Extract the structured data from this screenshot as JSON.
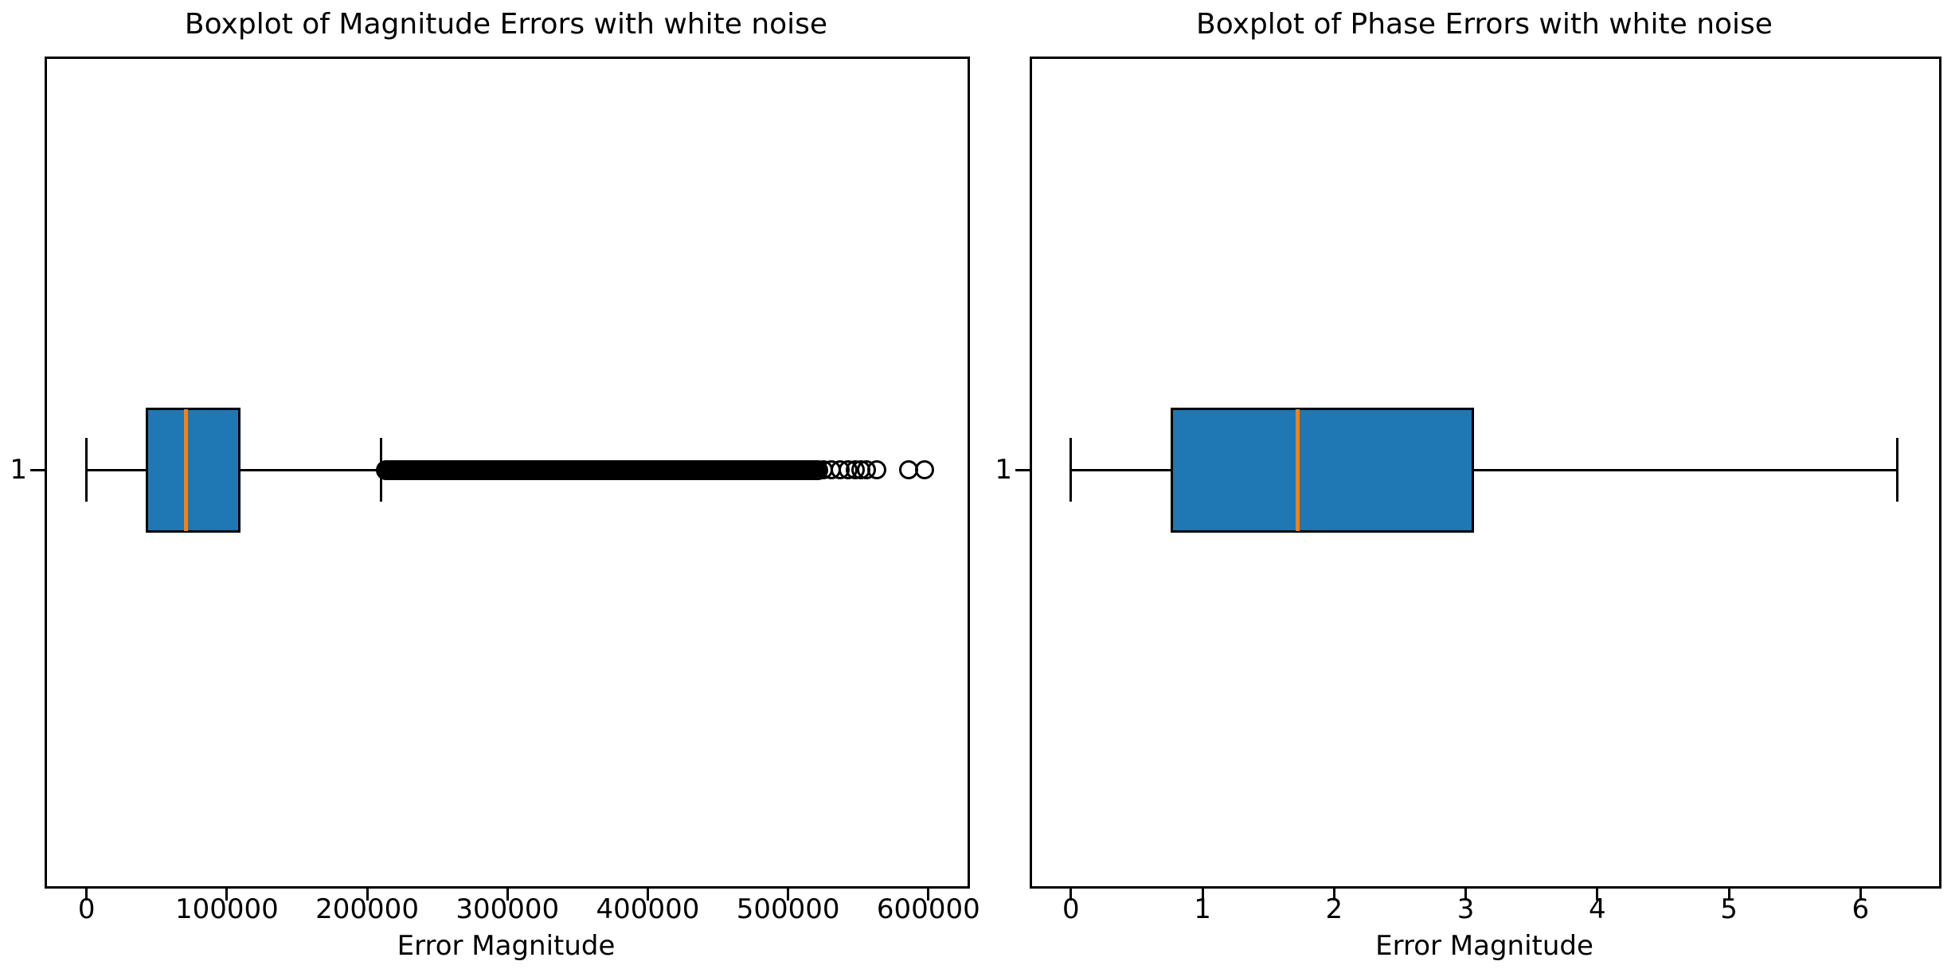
{
  "figure": {
    "background": "#ffffff"
  },
  "chart_data": [
    {
      "type": "boxplot",
      "orientation": "horizontal",
      "title": "Boxplot of Magnitude Errors with white noise",
      "xlabel": "Error Magnitude",
      "ylabel": "",
      "ytick_labels": [
        "1"
      ],
      "xlim": [
        -29900,
        627900
      ],
      "xticks": [
        0,
        100000,
        200000,
        300000,
        400000,
        500000,
        600000
      ],
      "xtick_labels": [
        "0",
        "100000",
        "200000",
        "300000",
        "400000",
        "500000",
        "600000"
      ],
      "grid": false,
      "box": {
        "position": 1,
        "whisker_low": 0,
        "q1": 42000,
        "median": 71000,
        "q3": 110000,
        "whisker_high": 210000
      },
      "outliers": {
        "dense_band": [
          213000,
          522000
        ],
        "circles": [
          525000,
          531000,
          537000,
          543000,
          548000,
          552000,
          556000,
          563000,
          586000,
          597000
        ]
      },
      "colors": {
        "box_fill": "#1f77b4",
        "median": "#ff7f0e",
        "line": "#000000"
      }
    },
    {
      "type": "boxplot",
      "orientation": "horizontal",
      "title": "Boxplot of Phase Errors with white noise",
      "xlabel": "Error Magnitude",
      "ylabel": "",
      "ytick_labels": [
        "1"
      ],
      "xlim": [
        -0.314,
        6.597
      ],
      "xticks": [
        0,
        1,
        2,
        3,
        4,
        5,
        6
      ],
      "xtick_labels": [
        "0",
        "1",
        "2",
        "3",
        "4",
        "5",
        "6"
      ],
      "grid": false,
      "box": {
        "position": 1,
        "whisker_low": 0,
        "q1": 0.76,
        "median": 1.72,
        "q3": 3.06,
        "whisker_high": 6.28
      },
      "outliers": {
        "dense_band": null,
        "circles": []
      },
      "colors": {
        "box_fill": "#1f77b4",
        "median": "#ff7f0e",
        "line": "#000000"
      }
    }
  ]
}
